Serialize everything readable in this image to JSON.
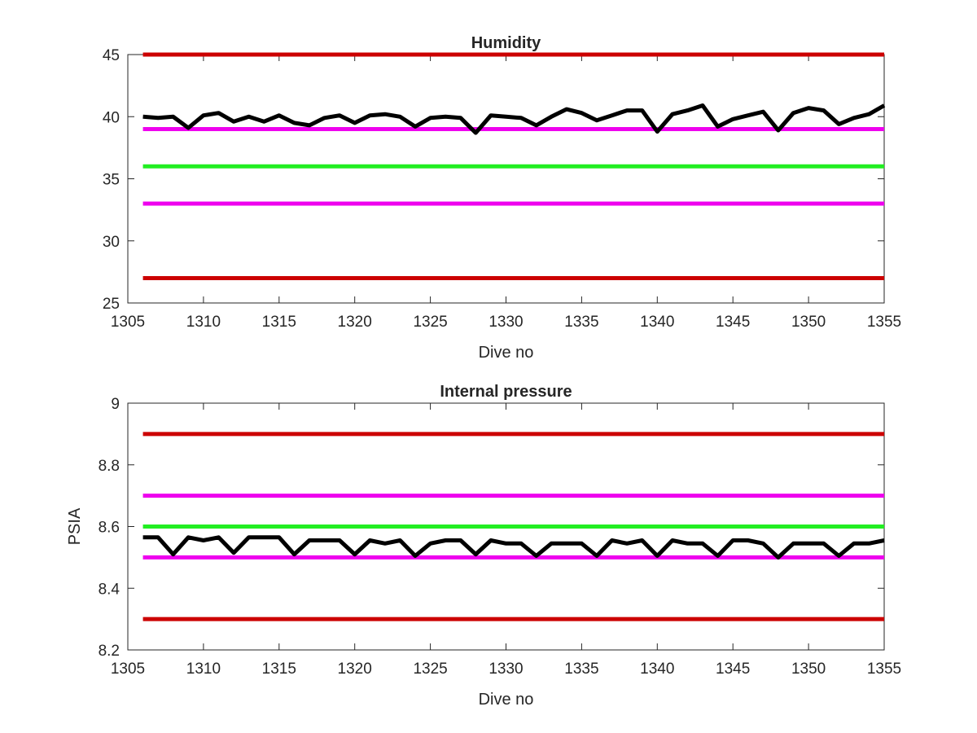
{
  "chart_data": [
    {
      "type": "line",
      "title": "Humidity",
      "xlabel": "Dive no",
      "ylabel": "",
      "xlim": [
        1305,
        1355
      ],
      "ylim": [
        25,
        45
      ],
      "xticks": [
        1305,
        1310,
        1315,
        1320,
        1325,
        1330,
        1335,
        1340,
        1345,
        1350,
        1355
      ],
      "yticks": [
        25,
        30,
        35,
        40,
        45
      ],
      "xtick_labels": [
        "1305",
        "1310",
        "1315",
        "1320",
        "1325",
        "1330",
        "1335",
        "1340",
        "1345",
        "1350",
        "1355"
      ],
      "ytick_labels": [
        "25",
        "30",
        "35",
        "40",
        "45"
      ],
      "grid": false,
      "reference_lines": [
        {
          "y": 45,
          "color": "#cc0000"
        },
        {
          "y": 39,
          "color": "#ee00ee"
        },
        {
          "y": 36,
          "color": "#22ee22"
        },
        {
          "y": 33,
          "color": "#ee00ee"
        },
        {
          "y": 27,
          "color": "#cc0000"
        }
      ],
      "series": [
        {
          "color": "#000000",
          "x": [
            1306,
            1307,
            1308,
            1309,
            1310,
            1311,
            1312,
            1313,
            1314,
            1315,
            1316,
            1317,
            1318,
            1319,
            1320,
            1321,
            1322,
            1323,
            1324,
            1325,
            1326,
            1327,
            1328,
            1329,
            1330,
            1331,
            1332,
            1333,
            1334,
            1335,
            1336,
            1337,
            1338,
            1339,
            1340,
            1341,
            1342,
            1343,
            1344,
            1345,
            1346,
            1347,
            1348,
            1349,
            1350,
            1351,
            1352,
            1353,
            1354,
            1355
          ],
          "y": [
            40.0,
            39.9,
            40.0,
            39.1,
            40.1,
            40.3,
            39.6,
            40.0,
            39.6,
            40.1,
            39.5,
            39.3,
            39.9,
            40.1,
            39.5,
            40.1,
            40.2,
            40.0,
            39.2,
            39.9,
            40.0,
            39.9,
            38.7,
            40.1,
            40.0,
            39.9,
            39.3,
            40.0,
            40.6,
            40.3,
            39.7,
            40.1,
            40.5,
            40.5,
            38.8,
            40.2,
            40.5,
            40.9,
            39.2,
            39.8,
            40.1,
            40.4,
            38.9,
            40.3,
            40.7,
            40.5,
            39.4,
            39.9,
            40.2,
            40.9
          ]
        }
      ]
    },
    {
      "type": "line",
      "title": "Internal pressure",
      "xlabel": "Dive no",
      "ylabel": "PSIA",
      "xlim": [
        1305,
        1355
      ],
      "ylim": [
        8.2,
        9
      ],
      "xticks": [
        1305,
        1310,
        1315,
        1320,
        1325,
        1330,
        1335,
        1340,
        1345,
        1350,
        1355
      ],
      "yticks": [
        8.2,
        8.4,
        8.6,
        8.8,
        9
      ],
      "xtick_labels": [
        "1305",
        "1310",
        "1315",
        "1320",
        "1325",
        "1330",
        "1335",
        "1340",
        "1345",
        "1350",
        "1355"
      ],
      "ytick_labels": [
        "8.2",
        "8.4",
        "8.6",
        "8.8",
        "9"
      ],
      "grid": false,
      "reference_lines": [
        {
          "y": 8.9,
          "color": "#cc0000"
        },
        {
          "y": 8.7,
          "color": "#ee00ee"
        },
        {
          "y": 8.6,
          "color": "#22ee22"
        },
        {
          "y": 8.5,
          "color": "#ee00ee"
        },
        {
          "y": 8.3,
          "color": "#cc0000"
        }
      ],
      "series": [
        {
          "color": "#000000",
          "x": [
            1306,
            1307,
            1308,
            1309,
            1310,
            1311,
            1312,
            1313,
            1314,
            1315,
            1316,
            1317,
            1318,
            1319,
            1320,
            1321,
            1322,
            1323,
            1324,
            1325,
            1326,
            1327,
            1328,
            1329,
            1330,
            1331,
            1332,
            1333,
            1334,
            1335,
            1336,
            1337,
            1338,
            1339,
            1340,
            1341,
            1342,
            1343,
            1344,
            1345,
            1346,
            1347,
            1348,
            1349,
            1350,
            1351,
            1352,
            1353,
            1354,
            1355
          ],
          "y": [
            8.565,
            8.565,
            8.51,
            8.565,
            8.555,
            8.565,
            8.515,
            8.565,
            8.565,
            8.565,
            8.51,
            8.555,
            8.555,
            8.555,
            8.51,
            8.555,
            8.545,
            8.555,
            8.505,
            8.545,
            8.555,
            8.555,
            8.51,
            8.555,
            8.545,
            8.545,
            8.505,
            8.545,
            8.545,
            8.545,
            8.505,
            8.555,
            8.545,
            8.555,
            8.505,
            8.555,
            8.545,
            8.545,
            8.505,
            8.555,
            8.555,
            8.545,
            8.5,
            8.545,
            8.545,
            8.545,
            8.505,
            8.545,
            8.545,
            8.555
          ]
        }
      ]
    }
  ]
}
